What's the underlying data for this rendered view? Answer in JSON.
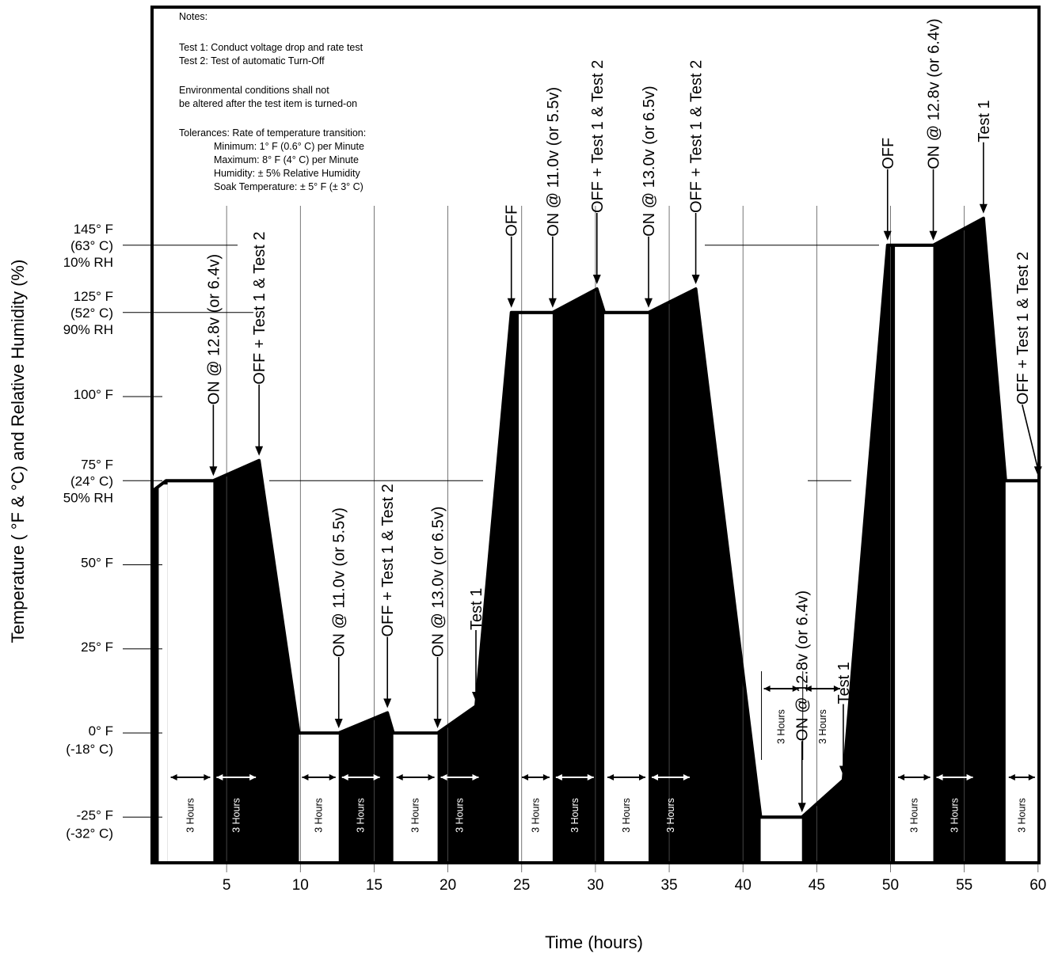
{
  "chart_data": {
    "type": "line",
    "xlabel": "Time (hours)",
    "ylabel": "Temperature ( °F & °C) and Relative Humidity (%)",
    "xlim": [
      0,
      60
    ],
    "ylim": [
      -25,
      145
    ],
    "x_ticks": [
      5,
      10,
      15,
      20,
      25,
      30,
      35,
      40,
      45,
      50,
      55,
      60
    ],
    "y_tick_labels": [
      {
        "value": 145,
        "lines": [
          "145° F",
          "(63° C)",
          "10% RH"
        ]
      },
      {
        "value": 125,
        "lines": [
          "125° F",
          "(52° C)",
          "90% RH"
        ]
      },
      {
        "value": 100,
        "lines": [
          "100° F"
        ]
      },
      {
        "value": 75,
        "lines": [
          "75° F",
          "(24° C)",
          "50% RH"
        ]
      },
      {
        "value": 50,
        "lines": [
          "50° F"
        ]
      },
      {
        "value": 25,
        "lines": [
          "25° F"
        ]
      },
      {
        "value": 0,
        "lines": [
          "0° F",
          "(-18° C)"
        ]
      },
      {
        "value": -25,
        "lines": [
          "-25° F",
          "(-32° C)"
        ]
      }
    ],
    "series": [
      {
        "x": [
          0,
          0.9,
          2.3,
          4.1,
          7.2,
          9.9,
          12.6,
          15.9,
          16.3,
          19.3,
          21.9,
          24.3,
          27.1,
          30.1,
          30.6,
          33.6,
          36.8,
          41.2,
          44.0,
          46.8,
          49.8,
          52.9,
          56.3,
          57.8,
          60.0
        ],
        "y": [
          72,
          75,
          75,
          75,
          81,
          0,
          0,
          6,
          0,
          0,
          8,
          125,
          125,
          132,
          125,
          125,
          132,
          -25,
          -25,
          -14,
          145,
          145,
          153,
          75,
          75
        ]
      }
    ],
    "periods": [
      {
        "x0": 0,
        "x1": 0.4,
        "fill": "black"
      },
      {
        "x0": 0.4,
        "x1": 1.0,
        "fill": "white"
      },
      {
        "x0": 1.0,
        "x1": 4.1,
        "fill": "white"
      },
      {
        "x0": 4.1,
        "x1": 7.2,
        "fill": "black"
      },
      {
        "x0": 7.2,
        "x1": 9.9,
        "fill": "black"
      },
      {
        "x0": 9.9,
        "x1": 12.6,
        "fill": "white"
      },
      {
        "x0": 12.6,
        "x1": 16.3,
        "fill": "black"
      },
      {
        "x0": 16.3,
        "x1": 19.3,
        "fill": "white"
      },
      {
        "x0": 19.3,
        "x1": 24.3,
        "fill": "black"
      },
      {
        "x0": 24.8,
        "x1": 27.1,
        "fill": "white"
      },
      {
        "x0": 27.1,
        "x1": 30.6,
        "fill": "black"
      },
      {
        "x0": 30.6,
        "x1": 33.6,
        "fill": "white"
      },
      {
        "x0": 33.6,
        "x1": 41.2,
        "fill": "black"
      },
      {
        "x0": 41.2,
        "x1": 44.0,
        "fill": "white"
      },
      {
        "x0": 44.0,
        "x1": 49.8,
        "fill": "black"
      },
      {
        "x0": 50.3,
        "x1": 52.9,
        "fill": "white"
      },
      {
        "x0": 52.9,
        "x1": 57.8,
        "fill": "black"
      },
      {
        "x0": 57.8,
        "x1": 60.0,
        "fill": "white"
      }
    ],
    "duration_label": "3 Hours",
    "durations": [
      {
        "x0": 1.0,
        "x1": 4.1,
        "on_dark": false
      },
      {
        "x0": 4.1,
        "x1": 7.2,
        "on_dark": true
      },
      {
        "x0": 9.9,
        "x1": 12.6,
        "on_dark": false
      },
      {
        "x0": 12.6,
        "x1": 15.6,
        "on_dark": true
      },
      {
        "x0": 16.3,
        "x1": 19.3,
        "on_dark": false
      },
      {
        "x0": 19.3,
        "x1": 22.3,
        "on_dark": true
      },
      {
        "x0": 24.8,
        "x1": 27.1,
        "on_dark": false
      },
      {
        "x0": 27.1,
        "x1": 30.1,
        "on_dark": true
      },
      {
        "x0": 30.6,
        "x1": 33.6,
        "on_dark": false
      },
      {
        "x0": 33.6,
        "x1": 36.6,
        "on_dark": true
      },
      {
        "x0": 41.2,
        "x1": 44.0,
        "on_dark": false,
        "upper": true
      },
      {
        "x0": 44.0,
        "x1": 46.8,
        "on_dark": false,
        "upper": true
      },
      {
        "x0": 50.3,
        "x1": 52.9,
        "on_dark": false
      },
      {
        "x0": 52.9,
        "x1": 55.8,
        "on_dark": true
      },
      {
        "x0": 57.8,
        "x1": 60.0,
        "on_dark": false
      }
    ],
    "events": [
      {
        "x": 4.1,
        "y": 75,
        "label": "ON @ 12.8v (or 6.4v)"
      },
      {
        "x": 7.2,
        "y": 81,
        "label": "OFF + Test 1 & Test 2"
      },
      {
        "x": 12.6,
        "y": 0,
        "label": "ON @ 11.0v (or 5.5v)"
      },
      {
        "x": 15.9,
        "y": 6,
        "label": "OFF + Test 1 & Test 2"
      },
      {
        "x": 19.3,
        "y": 0,
        "label": "ON @ 13.0v (or 6.5v)"
      },
      {
        "x": 21.9,
        "y": 8,
        "label": "Test 1"
      },
      {
        "x": 24.3,
        "y": 125,
        "label": "OFF"
      },
      {
        "x": 27.1,
        "y": 125,
        "label": "ON @ 11.0v (or 5.5v)"
      },
      {
        "x": 30.1,
        "y": 132,
        "label": "OFF + Test 1 & Test 2"
      },
      {
        "x": 33.6,
        "y": 125,
        "label": "ON @ 13.0v (or 6.5v)"
      },
      {
        "x": 36.8,
        "y": 132,
        "label": "OFF + Test 1 & Test 2"
      },
      {
        "x": 44.0,
        "y": -25,
        "label": "ON @ 12.8v (or 6.4v)"
      },
      {
        "x": 46.8,
        "y": -14,
        "label": "Test 1"
      },
      {
        "x": 49.8,
        "y": 145,
        "label": "OFF"
      },
      {
        "x": 52.9,
        "y": 145,
        "label": "ON @ 12.8v (or 6.4v)"
      },
      {
        "x": 56.3,
        "y": 153,
        "label": "Test 1"
      },
      {
        "x": 60.0,
        "y": 75,
        "label": "OFF + Test 1 & Test 2"
      }
    ],
    "notes": [
      "Notes:",
      "Test 1: Conduct voltage drop and rate test",
      "Test 2: Test of automatic Turn-Off",
      "Environmental conditions shall not",
      "be altered after the test item is turned-on",
      "Tolerances: Rate of temperature transition:",
      "Minimum: 1° F (0.6° C) per Minute",
      "Maximum: 8° F (4° C) per Minute",
      "Humidity: ± 5% Relative Humidity",
      "Soak Temperature: ± 5° F (± 3° C)"
    ],
    "grid": true,
    "colors": {
      "ink": "#000000",
      "paper": "#ffffff",
      "grid": "#555555"
    }
  }
}
